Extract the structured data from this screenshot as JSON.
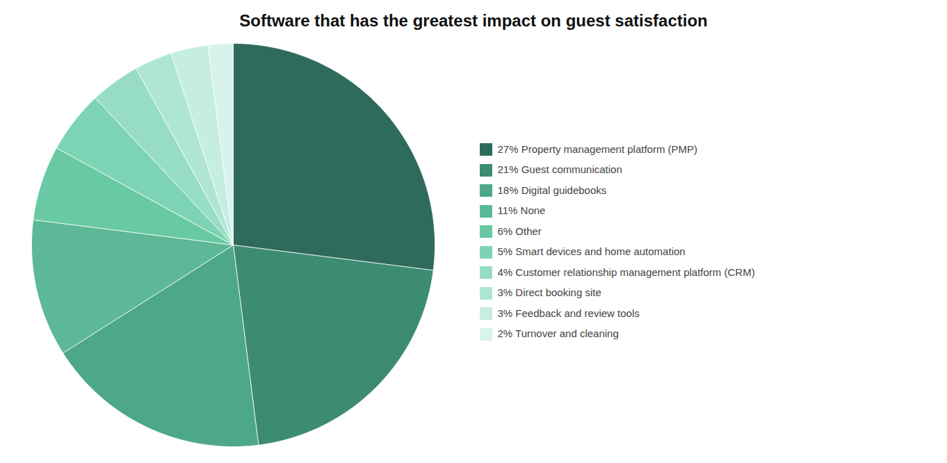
{
  "chart_data": {
    "type": "pie",
    "title": "Software that has the greatest impact on guest satisfaction",
    "categories": [
      "27% Property management platform (PMP)",
      "21% Guest communication",
      "18% Digital guidebooks",
      "11% None",
      "6% Other",
      "5% Smart devices and home automation",
      "4% Customer relationship management platform (CRM)",
      "3% Direct booking site",
      "3% Feedback and review tools",
      "2% Turnover and cleaning"
    ],
    "values": [
      27,
      21,
      18,
      11,
      6,
      5,
      4,
      3,
      3,
      2
    ],
    "colors": [
      "#2e6b5c",
      "#3d8c72",
      "#4da888",
      "#5cb896",
      "#68c9a4",
      "#7dd4b4",
      "#96ddc4",
      "#aee6d3",
      "#c5ede0",
      "#d8f3ec"
    ],
    "legend": "right"
  }
}
